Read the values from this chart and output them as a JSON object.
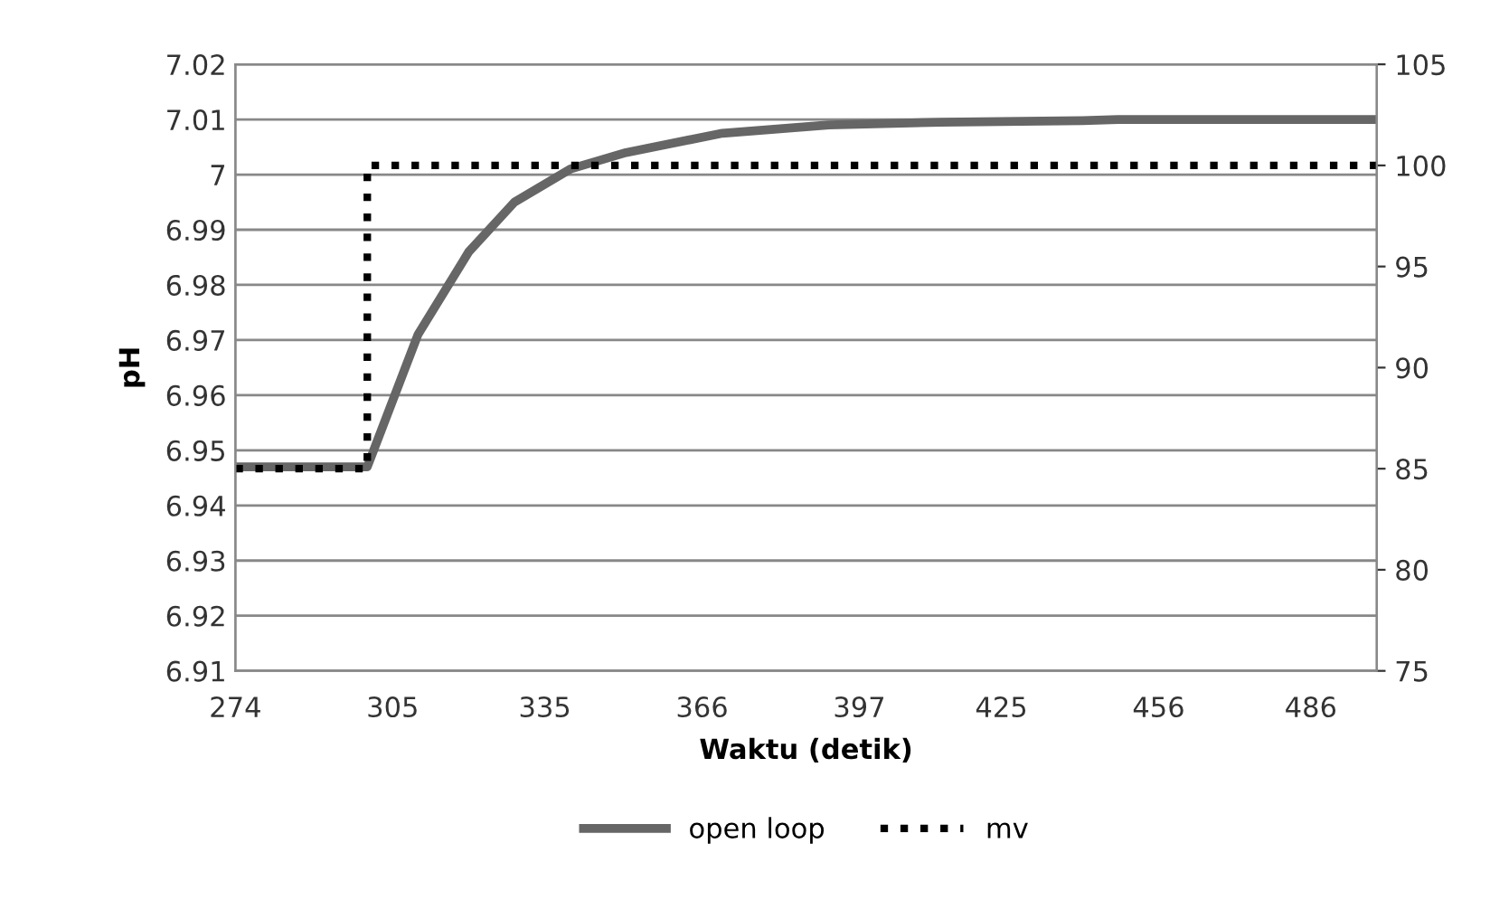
{
  "chart_data": {
    "type": "line",
    "xlabel": "Waktu (detik)",
    "ylabel": "pH",
    "xlim": [
      274,
      499
    ],
    "xticks": [
      274,
      305,
      335,
      366,
      397,
      425,
      456,
      486
    ],
    "ylim": [
      6.91,
      7.02
    ],
    "yticks": [
      6.91,
      6.92,
      6.93,
      6.94,
      6.95,
      6.96,
      6.97,
      6.98,
      6.99,
      7,
      7.01,
      7.02
    ],
    "y2lim": [
      75,
      105
    ],
    "y2ticks": [
      75,
      80,
      85,
      90,
      95,
      100,
      105
    ],
    "grid": "y",
    "legend": "bottom",
    "series": [
      {
        "name": "open loop",
        "color": "#666666",
        "line_style": "solid",
        "x": [
          274,
          300,
          310,
          320,
          329,
          340,
          351,
          370,
          391,
          413,
          441,
          448,
          499
        ],
        "values": [
          6.947,
          6.947,
          6.971,
          6.986,
          6.995,
          7.001,
          7.004,
          7.0075,
          7.009,
          7.0095,
          7.0098,
          7.01,
          7.01
        ]
      },
      {
        "name": "mv",
        "type": "step",
        "axis": "y2",
        "color": "#000000",
        "line_style": "dotted",
        "x": [
          274,
          300,
          499
        ],
        "values": [
          85,
          100,
          100
        ]
      }
    ]
  }
}
